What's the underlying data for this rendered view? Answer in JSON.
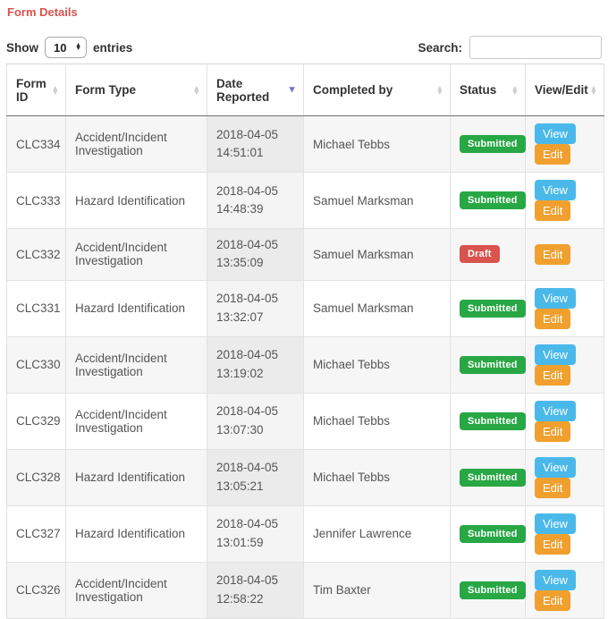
{
  "page": {
    "title": "Form Details"
  },
  "controls": {
    "show_label": "Show",
    "entries_value": "10",
    "entries_label": "entries",
    "search_label": "Search:",
    "search_value": ""
  },
  "colors": {
    "title_red": "#d9534f",
    "badge_submitted": "#28a745",
    "badge_draft": "#d9534f",
    "button_view": "#4ab9ea",
    "button_edit": "#f0a02f",
    "sort_active_arrow": "#6e73d8"
  },
  "table": {
    "columns": [
      {
        "label": "Form ID",
        "sort": "both"
      },
      {
        "label": "Form Type",
        "sort": "both"
      },
      {
        "label": "Date Reported",
        "sort": "desc"
      },
      {
        "label": "Completed by",
        "sort": "both"
      },
      {
        "label": "Status",
        "sort": "both"
      },
      {
        "label": "View/Edit",
        "sort": "both"
      }
    ],
    "rows": [
      {
        "form_id": "CLC334",
        "form_type": "Accident/Incident Investigation",
        "date": "2018-04-05",
        "time": "14:51:01",
        "completed_by": "Michael Tebbs",
        "status": "Submitted",
        "actions": [
          "View",
          "Edit"
        ]
      },
      {
        "form_id": "CLC333",
        "form_type": "Hazard Identification",
        "date": "2018-04-05",
        "time": "14:48:39",
        "completed_by": "Samuel Marksman",
        "status": "Submitted",
        "actions": [
          "View",
          "Edit"
        ]
      },
      {
        "form_id": "CLC332",
        "form_type": "Accident/Incident Investigation",
        "date": "2018-04-05",
        "time": "13:35:09",
        "completed_by": "Samuel Marksman",
        "status": "Draft",
        "actions": [
          "Edit"
        ]
      },
      {
        "form_id": "CLC331",
        "form_type": "Hazard Identification",
        "date": "2018-04-05",
        "time": "13:32:07",
        "completed_by": "Samuel Marksman",
        "status": "Submitted",
        "actions": [
          "View",
          "Edit"
        ]
      },
      {
        "form_id": "CLC330",
        "form_type": "Accident/Incident Investigation",
        "date": "2018-04-05",
        "time": "13:19:02",
        "completed_by": "Michael Tebbs",
        "status": "Submitted",
        "actions": [
          "View",
          "Edit"
        ]
      },
      {
        "form_id": "CLC329",
        "form_type": "Accident/Incident Investigation",
        "date": "2018-04-05",
        "time": "13:07:30",
        "completed_by": "Michael Tebbs",
        "status": "Submitted",
        "actions": [
          "View",
          "Edit"
        ]
      },
      {
        "form_id": "CLC328",
        "form_type": "Hazard Identification",
        "date": "2018-04-05",
        "time": "13:05:21",
        "completed_by": "Michael Tebbs",
        "status": "Submitted",
        "actions": [
          "View",
          "Edit"
        ]
      },
      {
        "form_id": "CLC327",
        "form_type": "Hazard Identification",
        "date": "2018-04-05",
        "time": "13:01:59",
        "completed_by": "Jennifer Lawrence",
        "status": "Submitted",
        "actions": [
          "View",
          "Edit"
        ]
      },
      {
        "form_id": "CLC326",
        "form_type": "Accident/Incident Investigation",
        "date": "2018-04-05",
        "time": "12:58:22",
        "completed_by": "Tim Baxter",
        "status": "Submitted",
        "actions": [
          "View",
          "Edit"
        ]
      }
    ]
  }
}
